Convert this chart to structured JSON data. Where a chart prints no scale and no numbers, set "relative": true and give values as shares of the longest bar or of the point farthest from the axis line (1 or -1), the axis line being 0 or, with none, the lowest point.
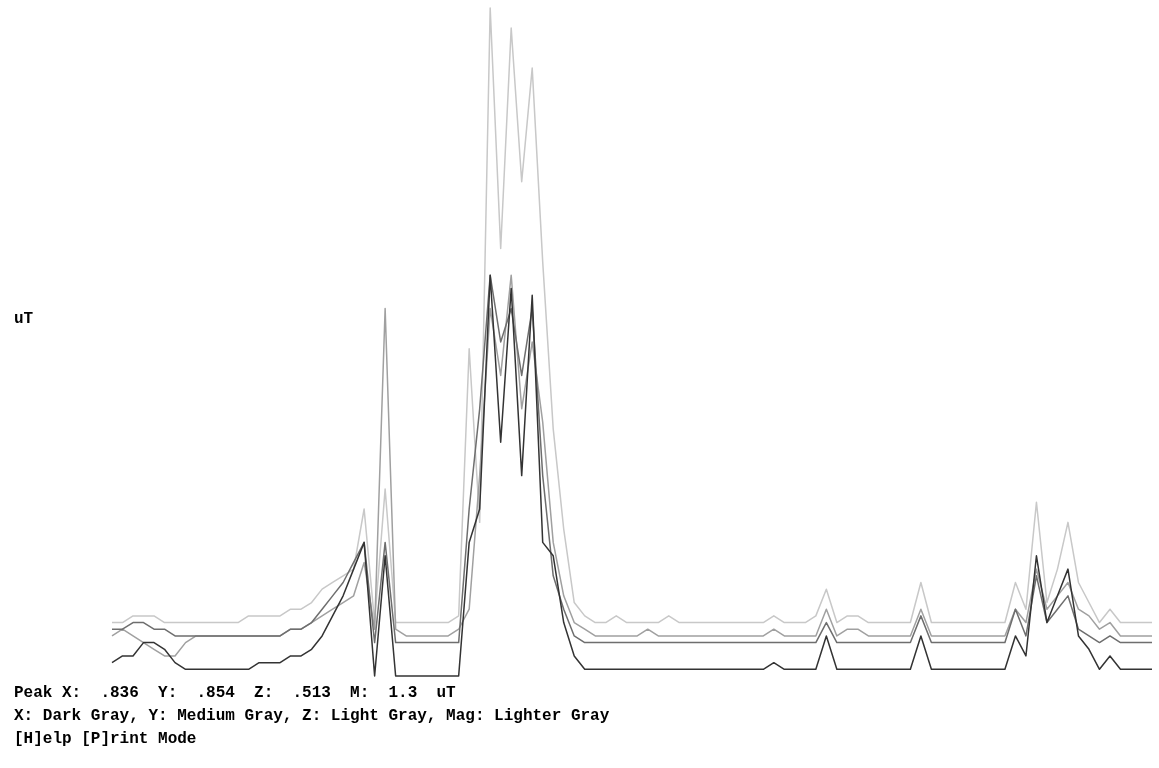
{
  "chart_data": {
    "type": "line",
    "relative": true,
    "ylabel": "uT",
    "line_style": "solid",
    "categories": [
      null,
      null,
      null,
      null,
      null,
      null,
      null,
      null,
      null,
      null,
      null,
      null,
      null,
      null,
      null,
      null,
      null,
      null,
      null,
      null,
      null,
      null,
      null,
      null,
      null,
      null,
      null,
      null,
      null,
      null,
      null,
      null,
      null,
      null,
      null,
      null,
      null,
      null,
      null,
      null,
      null,
      null,
      null,
      null,
      null,
      null,
      null,
      null,
      null,
      null,
      null,
      null,
      null,
      null,
      null,
      null,
      null,
      null,
      null,
      null,
      null,
      null,
      null,
      null,
      null,
      null,
      null,
      null,
      null,
      null,
      null,
      null,
      null,
      null,
      null,
      null,
      null,
      null,
      null,
      null,
      null,
      null,
      null,
      null,
      null,
      null,
      null,
      null,
      null,
      null,
      null,
      null,
      null,
      null,
      null,
      null,
      null,
      null,
      null,
      null
    ],
    "series": [
      {
        "color": "#c8c8c8",
        "values": [
          0.08,
          0.08,
          0.09,
          0.09,
          0.09,
          0.08,
          0.08,
          0.08,
          0.08,
          0.08,
          0.08,
          0.08,
          0.08,
          0.09,
          0.09,
          0.09,
          0.09,
          0.1,
          0.1,
          0.11,
          0.13,
          0.14,
          0.15,
          0.16,
          0.25,
          0.08,
          0.28,
          0.08,
          0.08,
          0.08,
          0.08,
          0.08,
          0.08,
          0.09,
          0.49,
          0.23,
          1,
          0.64,
          0.97,
          0.74,
          0.91,
          0.62,
          0.37,
          0.22,
          0.11,
          0.09,
          0.08,
          0.08,
          0.09,
          0.08,
          0.08,
          0.08,
          0.08,
          0.09,
          0.08,
          0.08,
          0.08,
          0.08,
          0.08,
          0.08,
          0.08,
          0.08,
          0.08,
          0.09,
          0.08,
          0.08,
          0.08,
          0.09,
          0.13,
          0.08,
          0.09,
          0.09,
          0.08,
          0.08,
          0.08,
          0.08,
          0.08,
          0.14,
          0.08,
          0.08,
          0.08,
          0.08,
          0.08,
          0.08,
          0.08,
          0.08,
          0.14,
          0.1,
          0.26,
          0.11,
          0.16,
          0.23,
          0.14,
          0.11,
          0.08,
          0.1,
          0.08,
          0.08,
          0.08,
          0.08
        ]
      },
      {
        "color": "#a0a0a0",
        "values": [
          0.06,
          0.07,
          0.06,
          0.05,
          0.04,
          0.03,
          0.03,
          0.05,
          0.06,
          0.06,
          0.06,
          0.06,
          0.06,
          0.06,
          0.06,
          0.06,
          0.06,
          0.07,
          0.07,
          0.08,
          0.09,
          0.1,
          0.11,
          0.12,
          0.17,
          0.07,
          0.55,
          0.07,
          0.06,
          0.06,
          0.06,
          0.06,
          0.06,
          0.07,
          0.1,
          0.3,
          0.55,
          0.45,
          0.6,
          0.4,
          0.5,
          0.38,
          0.2,
          0.12,
          0.08,
          0.07,
          0.06,
          0.06,
          0.06,
          0.06,
          0.06,
          0.07,
          0.06,
          0.06,
          0.06,
          0.06,
          0.06,
          0.06,
          0.06,
          0.06,
          0.06,
          0.06,
          0.06,
          0.07,
          0.06,
          0.06,
          0.06,
          0.06,
          0.1,
          0.06,
          0.07,
          0.07,
          0.06,
          0.06,
          0.06,
          0.06,
          0.06,
          0.1,
          0.06,
          0.06,
          0.06,
          0.06,
          0.06,
          0.06,
          0.06,
          0.06,
          0.1,
          0.08,
          0.16,
          0.1,
          0.12,
          0.14,
          0.1,
          0.09,
          0.07,
          0.08,
          0.06,
          0.06,
          0.06,
          0.06
        ]
      },
      {
        "color": "#6e6e6e",
        "values": [
          0.07,
          0.07,
          0.08,
          0.08,
          0.07,
          0.07,
          0.06,
          0.06,
          0.06,
          0.06,
          0.06,
          0.06,
          0.06,
          0.06,
          0.06,
          0.06,
          0.06,
          0.07,
          0.07,
          0.08,
          0.1,
          0.12,
          0.14,
          0.17,
          0.2,
          0.05,
          0.2,
          0.05,
          0.05,
          0.05,
          0.05,
          0.05,
          0.05,
          0.05,
          0.25,
          0.4,
          0.6,
          0.5,
          0.55,
          0.45,
          0.55,
          0.3,
          0.15,
          0.1,
          0.06,
          0.05,
          0.05,
          0.05,
          0.05,
          0.05,
          0.05,
          0.05,
          0.05,
          0.05,
          0.05,
          0.05,
          0.05,
          0.05,
          0.05,
          0.05,
          0.05,
          0.05,
          0.05,
          0.05,
          0.05,
          0.05,
          0.05,
          0.05,
          0.08,
          0.05,
          0.05,
          0.05,
          0.05,
          0.05,
          0.05,
          0.05,
          0.05,
          0.09,
          0.05,
          0.05,
          0.05,
          0.05,
          0.05,
          0.05,
          0.05,
          0.05,
          0.1,
          0.06,
          0.15,
          0.08,
          0.1,
          0.12,
          0.07,
          0.06,
          0.05,
          0.06,
          0.05,
          0.05,
          0.05,
          0.05
        ]
      },
      {
        "color": "#333333",
        "values": [
          0.02,
          0.03,
          0.03,
          0.05,
          0.05,
          0.04,
          0.02,
          0.01,
          0.01,
          0.01,
          0.01,
          0.01,
          0.01,
          0.01,
          0.02,
          0.02,
          0.02,
          0.03,
          0.03,
          0.04,
          0.06,
          0.09,
          0.12,
          0.16,
          0.2,
          0,
          0.18,
          0,
          0,
          0,
          0,
          0,
          0,
          0,
          0.2,
          0.25,
          0.6,
          0.35,
          0.58,
          0.3,
          0.57,
          0.2,
          0.18,
          0.08,
          0.03,
          0.01,
          0.01,
          0.01,
          0.01,
          0.01,
          0.01,
          0.01,
          0.01,
          0.01,
          0.01,
          0.01,
          0.01,
          0.01,
          0.01,
          0.01,
          0.01,
          0.01,
          0.01,
          0.02,
          0.01,
          0.01,
          0.01,
          0.01,
          0.06,
          0.01,
          0.01,
          0.01,
          0.01,
          0.01,
          0.01,
          0.01,
          0.01,
          0.06,
          0.01,
          0.01,
          0.01,
          0.01,
          0.01,
          0.01,
          0.01,
          0.01,
          0.06,
          0.03,
          0.18,
          0.08,
          0.12,
          0.16,
          0.06,
          0.04,
          0.01,
          0.03,
          0.01,
          0.01,
          0.01,
          0.01
        ]
      }
    ],
    "annotations": [
      "Peak X:  .836  Y:  .854  Z:  .513  M:  1.3  uT",
      "X: Dark Gray, Y: Medium Gray, Z: Light Gray, Mag: Lighter Gray",
      "[H]elp [P]rint Mode"
    ]
  }
}
